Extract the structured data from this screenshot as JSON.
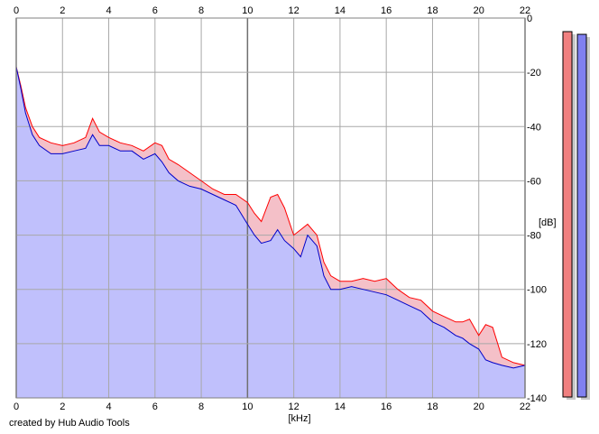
{
  "credit": "created by Hub Audio Tools",
  "chart_data": {
    "type": "area",
    "xlabel": "[kHz]",
    "ylabel": "[dB]",
    "xlim": [
      0,
      22
    ],
    "ylim": [
      -140,
      0
    ],
    "x_ticks": [
      "0",
      "2",
      "4",
      "6",
      "8",
      "10",
      "12",
      "14",
      "16",
      "18",
      "20",
      "22"
    ],
    "y_ticks": [
      "0",
      "-20",
      "-40",
      "-60",
      "-80",
      "-100",
      "-120",
      "-140"
    ],
    "grid": true,
    "colors": {
      "red": "#ff0000",
      "blue": "#0000c8",
      "blue_fill": "#c0c0fc",
      "red_fill": "#f4c0c8",
      "meter_red": "#f08080",
      "meter_blue": "#8080f0"
    },
    "series": [
      {
        "x": [
          0,
          0.2,
          0.4,
          0.7,
          1,
          1.5,
          2,
          2.5,
          3,
          3.3,
          3.6,
          4,
          4.5,
          5,
          5.5,
          6,
          6.3,
          6.6,
          7,
          7.5,
          8,
          8.5,
          9,
          9.5,
          10,
          10.3,
          10.6,
          11,
          11.3,
          11.6,
          12,
          12.3,
          12.6,
          13,
          13.3,
          13.6,
          14,
          14.5,
          15,
          15.5,
          16,
          16.5,
          17,
          17.5,
          18,
          18.5,
          19,
          19.3,
          19.6,
          20,
          20.3,
          20.6,
          21,
          21.5,
          22
        ],
        "values": [
          -18,
          -25,
          -33,
          -40,
          -44,
          -46,
          -47,
          -46,
          -44,
          -37,
          -42,
          -44,
          -46,
          -47,
          -49,
          -46,
          -47,
          -52,
          -54,
          -57,
          -60,
          -63,
          -65,
          -65,
          -68,
          -72,
          -75,
          -66,
          -65,
          -70,
          -80,
          -78,
          -76,
          -80,
          -90,
          -95,
          -97,
          -97,
          -96,
          -97,
          -96,
          -100,
          -103,
          -104,
          -108,
          -110,
          -112,
          -112,
          -111,
          -117,
          -113,
          -114,
          -125,
          -127,
          -128
        ]
      },
      {
        "x": [
          0,
          0.2,
          0.4,
          0.7,
          1,
          1.5,
          2,
          2.5,
          3,
          3.3,
          3.6,
          4,
          4.5,
          5,
          5.5,
          6,
          6.3,
          6.6,
          7,
          7.5,
          8,
          8.5,
          9,
          9.5,
          10,
          10.3,
          10.6,
          11,
          11.3,
          11.6,
          12,
          12.3,
          12.6,
          13,
          13.3,
          13.6,
          14,
          14.5,
          15,
          15.5,
          16,
          16.5,
          17,
          17.5,
          18,
          18.5,
          19,
          19.3,
          19.6,
          20,
          20.3,
          20.6,
          21,
          21.5,
          22
        ],
        "values": [
          -18,
          -26,
          -35,
          -43,
          -47,
          -50,
          -50,
          -49,
          -48,
          -43,
          -47,
          -47,
          -49,
          -49,
          -52,
          -50,
          -53,
          -57,
          -60,
          -62,
          -63,
          -65,
          -67,
          -69,
          -76,
          -80,
          -83,
          -82,
          -78,
          -82,
          -85,
          -88,
          -80,
          -84,
          -95,
          -100,
          -100,
          -99,
          -100,
          -101,
          -102,
          -104,
          -106,
          -108,
          -112,
          -114,
          -117,
          -118,
          -120,
          -122,
          -126,
          -127,
          -128,
          -129,
          -128
        ]
      }
    ],
    "meters": {
      "red_top": -5,
      "blue_top": -6
    }
  }
}
